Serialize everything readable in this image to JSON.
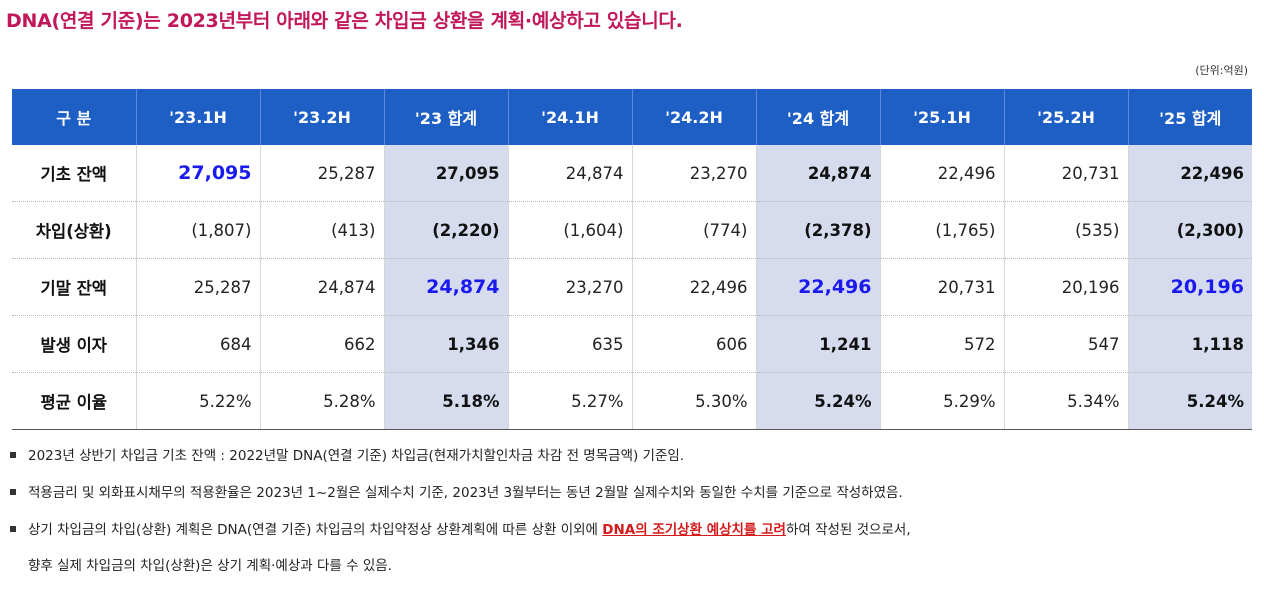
{
  "title": "DNA(연결 기준)는 2023년부터 아래와 같은 차입금 상환을 계획·예상하고 있습니다.",
  "unit": "(단위:억원)",
  "table": {
    "headers": [
      "구 분",
      "'23.1H",
      "'23.2H",
      "'23 합계",
      "'24.1H",
      "'24.2H",
      "'24 합계",
      "'25.1H",
      "'25.2H",
      "'25 합계"
    ],
    "rows": [
      {
        "label": "기초 잔액",
        "cells": [
          "27,095",
          "25,287",
          "27,095",
          "24,874",
          "23,270",
          "24,874",
          "22,496",
          "20,731",
          "22,496"
        ]
      },
      {
        "label": "차입(상환)",
        "cells": [
          "(1,807)",
          "(413)",
          "(2,220)",
          "(1,604)",
          "(774)",
          "(2,378)",
          "(1,765)",
          "(535)",
          "(2,300)"
        ]
      },
      {
        "label": "기말 잔액",
        "cells": [
          "25,287",
          "24,874",
          "24,874",
          "23,270",
          "22,496",
          "22,496",
          "20,731",
          "20,196",
          "20,196"
        ]
      },
      {
        "label": "발생 이자",
        "cells": [
          "684",
          "662",
          "1,346",
          "635",
          "606",
          "1,241",
          "572",
          "547",
          "1,118"
        ]
      },
      {
        "label": "평균 이율",
        "cells": [
          "5.22%",
          "5.28%",
          "5.18%",
          "5.27%",
          "5.30%",
          "5.24%",
          "5.29%",
          "5.34%",
          "5.24%"
        ]
      }
    ]
  },
  "notes": {
    "n1": "2023년 상반기 차입금 기초 잔액 : 2022년말 DNA(연결 기준) 차입금(현재가치할인차금 차감 전 명목금액) 기준임.",
    "n2": "적용금리 및 외화표시채무의 적용환율은 2023년 1~2월은 실제수치 기준, 2023년 3월부터는 동년  2월말 실제수치와 동일한 수치를 기준으로 작성하였음.",
    "n3_a": "상기 차입금의 차입(상환) 계획은 DNA(연결 기준) 차입금의 차입약정상 상환계획에 따른 상환 이외에 ",
    "n3_em": "DNA의 조기상환 예상치를 고려",
    "n3_b": "하여 작성된 것으로서,",
    "n3_c": "향후 실제 차입금의 차입(상환)은 상기 계획·예상과 다를 수 있음."
  },
  "colors": {
    "title": "#c0185a",
    "header_bg": "#1d5fc4",
    "total_bg": "#d6dced",
    "highlight": "#1a1af0",
    "emphasis": "#d41a1a"
  }
}
